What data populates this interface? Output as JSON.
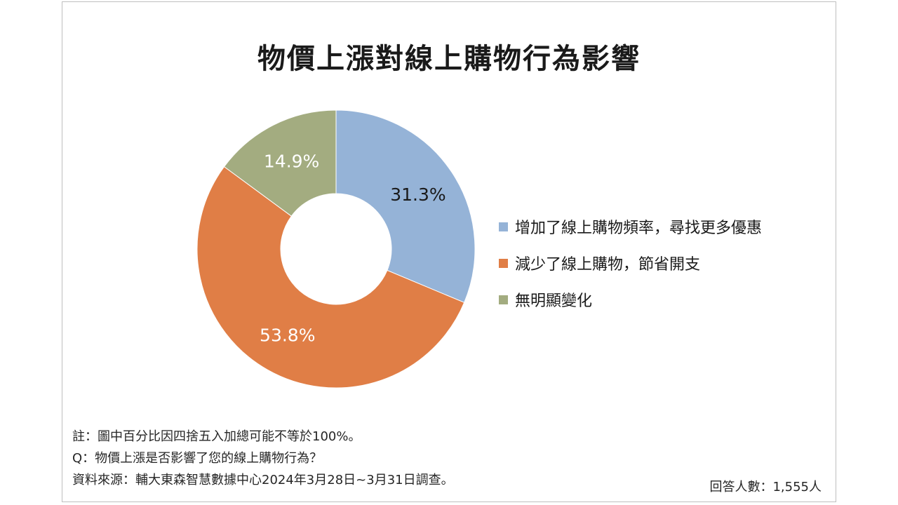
{
  "chart_data": {
    "type": "pie",
    "title": "物價上漲對線上購物行為影響",
    "donut": true,
    "categories": [
      "增加了線上購物頻率，尋找更多優惠",
      "減少了線上購物，節省開支",
      "無明顯變化"
    ],
    "values": [
      31.3,
      53.8,
      14.9
    ],
    "value_labels": [
      "31.3%",
      "53.8%",
      "14.9%"
    ],
    "colors": [
      "#95b3d7",
      "#e07e46",
      "#a3ac80"
    ],
    "legend_position": "right"
  },
  "footer": {
    "note": "註：圖中百分比因四捨五入加總可能不等於100%。",
    "question": "Q：物價上漲是否影響了您的線上購物行為？",
    "source": "資料來源：輔大東森智慧數據中心2024年3月28日~3月31日調查。",
    "respondents": "回答人數：1,555人"
  }
}
